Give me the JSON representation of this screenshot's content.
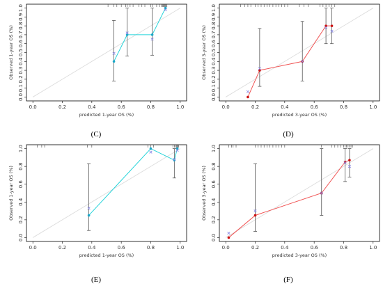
{
  "colors": {
    "cyan": "#22d3d9",
    "red": "#f05555",
    "cross": "#8f8fe6",
    "ideal": "#dcdcdc",
    "err": "#555555"
  },
  "chart_data": [
    {
      "type": "line",
      "panel_label": "(C)",
      "xlabel": "predicted 1-year OS (%)",
      "ylabel": "Observed 1-year OS (%)",
      "xlim": [
        0,
        1
      ],
      "ylim": [
        0,
        1
      ],
      "xticks": [
        "0.0",
        "0.2",
        "0.4",
        "0.6",
        "0.8",
        "1.0"
      ],
      "yticks": [
        "0.0",
        "0.1",
        "0.2",
        "0.3",
        "0.4",
        "0.5",
        "0.6",
        "0.7",
        "0.8",
        "0.9",
        "1.0"
      ],
      "grid": false,
      "ideal_line": true,
      "line_color": "#22d3d9",
      "marker": "cyan",
      "x": [
        0.55,
        0.64,
        0.81,
        0.9
      ],
      "y": [
        0.4,
        0.7,
        0.7,
        1.0
      ],
      "ci_low": [
        0.18,
        0.46,
        0.47,
        1.0
      ],
      "ci_high": [
        0.86,
        1.0,
        1.0,
        1.0
      ],
      "bias_corrected": [
        0.49,
        0.72,
        0.65,
        0.98
      ],
      "rug": [
        0.51,
        0.55,
        0.57,
        0.6,
        0.63,
        0.64,
        0.66,
        0.68,
        0.72,
        0.74,
        0.76,
        0.8,
        0.81,
        0.84,
        0.86,
        0.87,
        0.88,
        0.885,
        0.89,
        0.895,
        0.9,
        0.905,
        0.91
      ]
    },
    {
      "type": "line",
      "panel_label": "(D)",
      "xlabel": "predicted 3-year OS (%)",
      "ylabel": "Observed 3-year OS (%)",
      "xlim": [
        0,
        1
      ],
      "ylim": [
        0,
        1
      ],
      "xticks": [
        "0.0",
        "0.2",
        "0.4",
        "0.6",
        "0.8",
        "1.0"
      ],
      "yticks": [
        "0.0",
        "0.1",
        "0.2",
        "0.3",
        "0.4",
        "0.5",
        "0.6",
        "0.7",
        "0.8",
        "0.9",
        "1.0"
      ],
      "grid": false,
      "ideal_line": true,
      "line_color": "#f05555",
      "marker": "red",
      "x": [
        0.15,
        0.23,
        0.52,
        0.68,
        0.72
      ],
      "y": [
        0.0,
        0.3,
        0.4,
        0.8,
        0.8
      ],
      "ci_low": [
        0.0,
        0.12,
        0.18,
        0.6,
        0.6
      ],
      "ci_high": [
        0.0,
        0.77,
        0.85,
        1.0,
        1.0
      ],
      "bias_corrected": [
        0.06,
        0.32,
        0.4,
        0.78,
        0.74
      ],
      "rug": [
        0.1,
        0.13,
        0.15,
        0.17,
        0.2,
        0.22,
        0.24,
        0.26,
        0.28,
        0.3,
        0.32,
        0.34,
        0.36,
        0.38,
        0.4,
        0.42,
        0.5,
        0.53,
        0.56,
        0.64,
        0.66,
        0.68,
        0.7,
        0.72,
        0.74
      ]
    },
    {
      "type": "line",
      "panel_label": "(E)",
      "xlabel": "predicted 1-year OS (%)",
      "ylabel": "Observed 1-year OS (%)",
      "xlim": [
        0,
        1
      ],
      "ylim": [
        0,
        1
      ],
      "xticks": [
        "0.0",
        "0.2",
        "0.4",
        "0.6",
        "0.8",
        "1.0"
      ],
      "yticks": [
        "0.0",
        "0.2",
        "0.4",
        "0.6",
        "0.8",
        "1.0"
      ],
      "grid": false,
      "ideal_line": true,
      "line_color": "#22d3d9",
      "marker": "cyan",
      "x": [
        0.38,
        0.8,
        0.96,
        0.98
      ],
      "y": [
        0.25,
        1.0,
        0.87,
        1.0
      ],
      "ci_low": [
        0.08,
        1.0,
        0.67,
        1.0
      ],
      "ci_high": [
        0.83,
        1.0,
        1.0,
        1.0
      ],
      "bias_corrected": [
        0.33,
        0.96,
        0.88,
        0.98
      ],
      "rug": [
        0.03,
        0.06,
        0.08,
        0.37,
        0.4,
        0.78,
        0.8,
        0.82,
        0.95,
        0.96,
        0.97,
        0.975,
        0.98,
        0.985,
        0.99
      ]
    },
    {
      "type": "line",
      "panel_label": "(F)",
      "xlabel": "predicted 3-year OS (%)",
      "ylabel": "Observed 3-year OS (%)",
      "xlim": [
        0,
        1
      ],
      "ylim": [
        0,
        1
      ],
      "xticks": [
        "0.0",
        "0.2",
        "0.4",
        "0.6",
        "0.8",
        "1.0"
      ],
      "yticks": [
        "0.0",
        "0.2",
        "0.4",
        "0.6",
        "0.8",
        "1.0"
      ],
      "grid": false,
      "ideal_line": true,
      "line_color": "#f05555",
      "marker": "red",
      "x": [
        0.02,
        0.2,
        0.65,
        0.81,
        0.84
      ],
      "y": [
        0.0,
        0.25,
        0.5,
        0.85,
        0.87
      ],
      "ci_low": [
        0.0,
        0.07,
        0.25,
        0.63,
        0.68
      ],
      "ci_high": [
        0.0,
        0.83,
        1.0,
        1.0,
        1.0
      ],
      "bias_corrected": [
        0.05,
        0.3,
        0.5,
        0.84,
        0.8
      ],
      "rug": [
        0.02,
        0.04,
        0.05,
        0.07,
        0.2,
        0.22,
        0.24,
        0.26,
        0.28,
        0.3,
        0.32,
        0.34,
        0.36,
        0.38,
        0.4,
        0.65,
        0.72,
        0.74,
        0.76,
        0.78,
        0.8,
        0.81,
        0.82,
        0.83,
        0.84,
        0.85,
        0.86
      ]
    }
  ]
}
